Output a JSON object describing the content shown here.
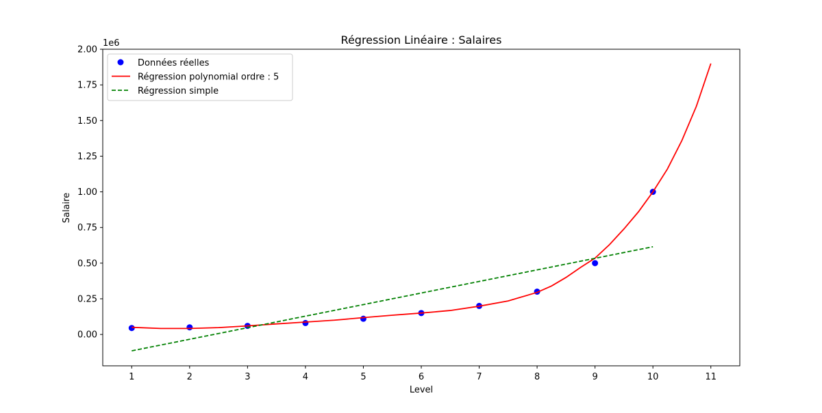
{
  "chart_data": {
    "type": "scatter",
    "title": "Régression Linéaire : Salaires",
    "xlabel": "Level",
    "ylabel": "Salaire",
    "y_offset_label": "1e6",
    "xlim": [
      0.5,
      11.5
    ],
    "ylim": [
      -0.22,
      2.0
    ],
    "x_ticks": [
      1,
      2,
      3,
      4,
      5,
      6,
      7,
      8,
      9,
      10,
      11
    ],
    "y_ticks": [
      0.0,
      0.25,
      0.5,
      0.75,
      1.0,
      1.25,
      1.5,
      1.75,
      2.0
    ],
    "y_tick_labels": [
      "0.00",
      "0.25",
      "0.50",
      "0.75",
      "1.00",
      "1.25",
      "1.50",
      "1.75",
      "2.00"
    ],
    "grid": false,
    "legend_position": "top-left",
    "series": [
      {
        "name": "Données réelles",
        "kind": "scatter",
        "color": "#0000ff",
        "x": [
          1,
          2,
          3,
          4,
          5,
          6,
          7,
          8,
          9,
          10
        ],
        "y": [
          0.045,
          0.05,
          0.06,
          0.08,
          0.11,
          0.15,
          0.2,
          0.3,
          0.5,
          1.0
        ]
      },
      {
        "name": "Régression polynomial ordre : 5",
        "kind": "line",
        "color": "#ff0000",
        "dash": "solid",
        "x": [
          1,
          1.5,
          2,
          2.5,
          3,
          3.5,
          4,
          4.5,
          5,
          5.5,
          6,
          6.5,
          7,
          7.5,
          8,
          8.25,
          8.5,
          8.75,
          9,
          9.25,
          9.5,
          9.75,
          10,
          10.25,
          10.5,
          10.75,
          11
        ],
        "y": [
          0.05,
          0.042,
          0.042,
          0.048,
          0.06,
          0.074,
          0.087,
          0.1,
          0.118,
          0.135,
          0.15,
          0.168,
          0.198,
          0.235,
          0.295,
          0.34,
          0.4,
          0.47,
          0.535,
          0.63,
          0.74,
          0.86,
          1.0,
          1.16,
          1.36,
          1.6,
          1.9
        ]
      },
      {
        "name": "Régression simple",
        "kind": "line",
        "color": "#008000",
        "dash": "dashed",
        "x": [
          1,
          10
        ],
        "y": [
          -0.115,
          0.615
        ]
      }
    ]
  }
}
